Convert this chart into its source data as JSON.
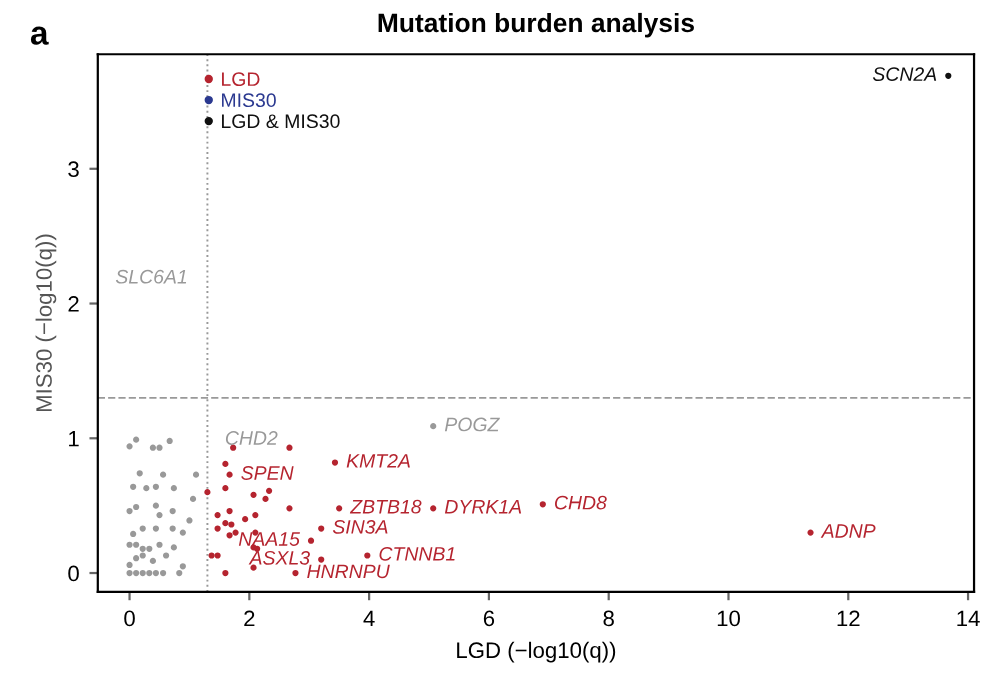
{
  "chart_data": {
    "type": "scatter",
    "title": "Mutation burden analysis",
    "xlabel": "LGD (−log10(q))",
    "ylabel": "MIS30 (−log10(q))",
    "xlim": [
      -0.53,
      14.1
    ],
    "ylim": [
      -0.14,
      3.85
    ],
    "xticks": [
      0,
      2,
      4,
      6,
      8,
      10,
      12,
      14
    ],
    "yticks": [
      0,
      1,
      2,
      3
    ],
    "grid": false,
    "legend": "top left",
    "marker": "circle",
    "ref_lines": [
      {
        "axis": "x",
        "value": 1.3,
        "color": "#999999",
        "line_style": "dotted"
      },
      {
        "axis": "y",
        "value": 1.3,
        "color": "#999999",
        "line_style": "dashed"
      }
    ],
    "series": [
      {
        "color": "#999999",
        "x": [
          0,
          0.11,
          0.22,
          0.33,
          0.44,
          0.56,
          0.83,
          0,
          0.11,
          0.22,
          0.33,
          0.39,
          0.61,
          0.89,
          0,
          0.11,
          0.22,
          0.5,
          0.74,
          0.06,
          0.22,
          0.44,
          0.72,
          0.89,
          0,
          0.11,
          0.44,
          0.5,
          0.72,
          1.0,
          0.06,
          0.28,
          0.44,
          0.74,
          1.06,
          0.17,
          0.56,
          1.11,
          0,
          0.39,
          0.5,
          0.67,
          0.11,
          5.07
        ],
        "values": [
          0,
          0,
          0,
          0,
          0,
          0,
          0,
          0.06,
          0.11,
          0.13,
          0.18,
          0.09,
          0.13,
          0.05,
          0.21,
          0.21,
          0.18,
          0.21,
          0.19,
          0.29,
          0.33,
          0.33,
          0.33,
          0.3,
          0.46,
          0.49,
          0.5,
          0.43,
          0.46,
          0.39,
          0.64,
          0.63,
          0.64,
          0.63,
          0.55,
          0.74,
          0.73,
          0.73,
          0.94,
          0.93,
          0.93,
          0.98,
          0.99,
          1.09
        ]
      },
      {
        "name": "LGD",
        "color": "#b5242f",
        "x": [
          3.43,
          1.67,
          3.5,
          5.07,
          3.2,
          3.03,
          3.2,
          3.97,
          2.77,
          6.9,
          11.37,
          1.73,
          2.67,
          1.6,
          1.3,
          1.6,
          2.07,
          2.33,
          2.27,
          2.67,
          1.47,
          1.67,
          1.6,
          1.7,
          1.77,
          1.67,
          1.47,
          1.93,
          2.1,
          2.1,
          2.07,
          2.13,
          1.37,
          1.47,
          1.6,
          2.07
        ],
        "values": [
          0.82,
          0.73,
          0.48,
          0.48,
          0.33,
          0.24,
          0.1,
          0.13,
          0,
          0.51,
          0.3,
          0.93,
          0.93,
          0.81,
          0.6,
          0.63,
          0.58,
          0.61,
          0.55,
          0.48,
          0.43,
          0.46,
          0.37,
          0.36,
          0.3,
          0.28,
          0.33,
          0.4,
          0.43,
          0.3,
          0.19,
          0.18,
          0.13,
          0.13,
          0,
          0.04
        ]
      },
      {
        "name": "MIS30",
        "color": "#2b3990"
      },
      {
        "name": "LGD & MIS30",
        "color": "#111111",
        "x": [
          13.67
        ],
        "values": [
          3.69
        ]
      }
    ],
    "annotations": [
      "a",
      {
        "text": "SCN2A",
        "x": 13.67,
        "y": 3.69
      },
      "SLC6A1",
      "CHD2",
      {
        "text": "POGZ",
        "x": 5.07,
        "y": 1.09
      },
      {
        "text": "KMT2A",
        "x": 3.43,
        "y": 0.82
      },
      {
        "text": "SPEN",
        "x": 1.67,
        "y": 0.73
      },
      {
        "text": "ZBTB18",
        "x": 3.5,
        "y": 0.48
      },
      {
        "text": "DYRK1A",
        "x": 5.07,
        "y": 0.48
      },
      {
        "text": "SIN3A",
        "x": 3.2,
        "y": 0.33
      },
      {
        "text": "NAA15",
        "x": 3.03,
        "y": 0.24
      },
      {
        "text": "ASXL3",
        "x": 3.2,
        "y": 0.1
      },
      {
        "text": "CTNNB1",
        "x": 3.97,
        "y": 0.13
      },
      {
        "text": "HNRNPU",
        "x": 2.77,
        "y": 0
      },
      {
        "text": "CHD8",
        "x": 6.9,
        "y": 0.51
      },
      {
        "text": "ADNP",
        "x": 11.37,
        "y": 0.3
      }
    ]
  }
}
